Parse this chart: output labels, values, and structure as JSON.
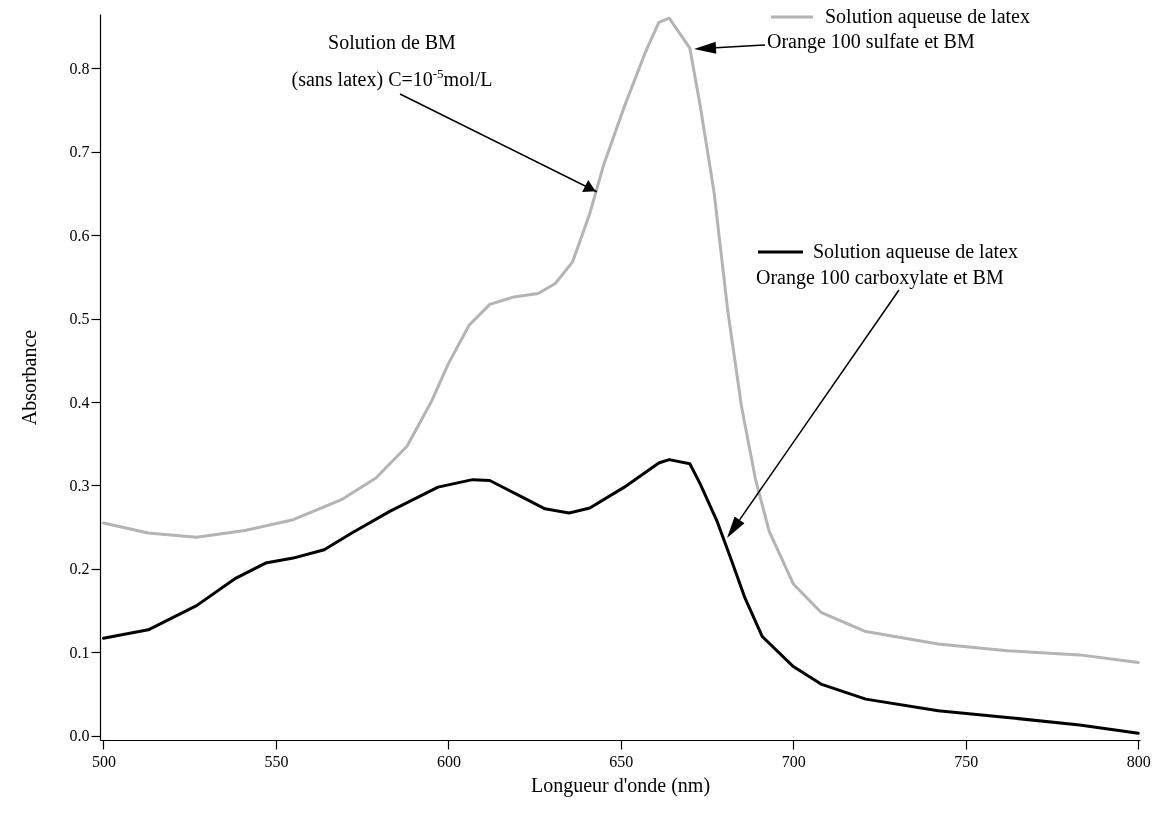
{
  "chart_data": {
    "type": "line",
    "xlabel": "Longueur d'onde (nm)",
    "ylabel": "Absorbance",
    "xlim": [
      499,
      800.5
    ],
    "ylim": [
      -0.005,
      0.865
    ],
    "xticks": [
      500,
      550,
      600,
      650,
      700,
      750,
      800
    ],
    "yticks": [
      {
        "value": 0,
        "label": "0.0"
      },
      {
        "value": 0.1,
        "label": "0.1"
      },
      {
        "value": 0.2,
        "label": "0.2"
      },
      {
        "value": 0.3,
        "label": "0.3"
      },
      {
        "value": 0.4,
        "label": "0.4"
      },
      {
        "value": 0.5,
        "label": "0.5"
      },
      {
        "value": 0.6,
        "label": "0.6"
      },
      {
        "value": 0.7,
        "label": "0.7"
      },
      {
        "value": 0.8,
        "label": "0.8"
      }
    ],
    "grid": false,
    "legend": "right",
    "marker": "none",
    "line_style": "solid",
    "series": [
      {
        "name": "Solution aqueuse de latex\nOrange 100 sulfate et BM",
        "color": "#b4b4b4",
        "x": [
          500,
          513,
          527,
          541,
          555,
          569,
          579,
          588,
          595,
          600,
          606,
          612,
          619,
          626,
          631,
          636,
          641,
          645,
          651,
          657,
          661,
          664,
          670,
          673,
          677,
          681,
          685,
          689,
          693,
          700,
          708,
          721,
          742,
          762,
          783,
          800
        ],
        "values": [
          0.255,
          0.243,
          0.238,
          0.246,
          0.259,
          0.283,
          0.309,
          0.347,
          0.4,
          0.446,
          0.492,
          0.517,
          0.526,
          0.53,
          0.542,
          0.568,
          0.626,
          0.684,
          0.754,
          0.818,
          0.855,
          0.86,
          0.824,
          0.755,
          0.652,
          0.509,
          0.394,
          0.308,
          0.245,
          0.182,
          0.148,
          0.125,
          0.11,
          0.102,
          0.097,
          0.088
        ]
      },
      {
        "name": "Solution aqueuse de latex\nOrange 100 carboxylate et BM",
        "color": "#000000",
        "x": [
          500,
          513,
          527,
          538,
          547,
          555,
          564,
          572,
          583,
          597,
          607,
          612,
          620,
          628,
          635,
          641,
          651,
          661,
          664,
          670,
          673,
          678,
          682,
          686,
          691,
          700,
          708,
          721,
          742,
          762,
          783,
          800
        ],
        "values": [
          0.117,
          0.127,
          0.156,
          0.188,
          0.207,
          0.213,
          0.223,
          0.243,
          0.269,
          0.298,
          0.307,
          0.306,
          0.289,
          0.272,
          0.267,
          0.273,
          0.298,
          0.327,
          0.331,
          0.326,
          0.302,
          0.256,
          0.211,
          0.165,
          0.119,
          0.083,
          0.062,
          0.044,
          0.03,
          0.022,
          0.013,
          0.003
        ]
      }
    ],
    "annotations": [
      {
        "text": "Solution de BM\n(sans latex) C=10$^{-5}$mol/L",
        "x": 643,
        "y": 0.652
      }
    ]
  }
}
